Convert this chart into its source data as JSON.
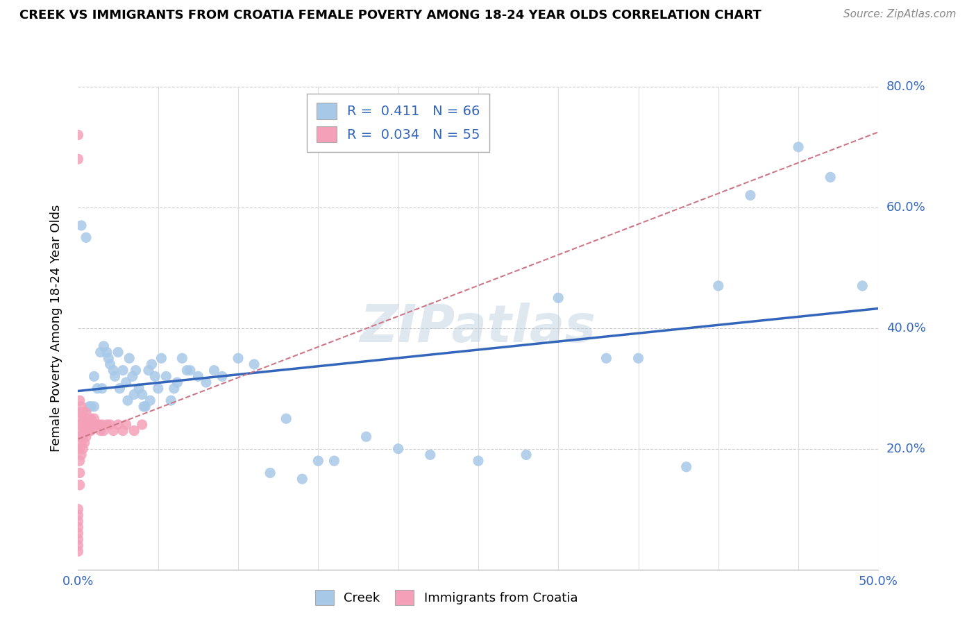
{
  "title": "CREEK VS IMMIGRANTS FROM CROATIA FEMALE POVERTY AMONG 18-24 YEAR OLDS CORRELATION CHART",
  "source": "Source: ZipAtlas.com",
  "ylabel": "Female Poverty Among 18-24 Year Olds",
  "xlim": [
    0.0,
    0.5
  ],
  "ylim": [
    0.0,
    0.8
  ],
  "creek_R": "0.411",
  "creek_N": "66",
  "croatia_R": "0.034",
  "croatia_N": "55",
  "creek_color": "#a8c8e8",
  "croatia_color": "#f4a0b8",
  "creek_line_color": "#3366bb",
  "croatia_line_color": "#cc7788",
  "legend_color": "#3366bb",
  "watermark": "ZIPatlas",
  "creek_scatter_x": [
    0.002,
    0.005,
    0.007,
    0.008,
    0.01,
    0.01,
    0.012,
    0.014,
    0.015,
    0.016,
    0.018,
    0.019,
    0.02,
    0.022,
    0.023,
    0.025,
    0.026,
    0.028,
    0.03,
    0.031,
    0.032,
    0.034,
    0.035,
    0.036,
    0.038,
    0.04,
    0.041,
    0.042,
    0.044,
    0.045,
    0.046,
    0.048,
    0.05,
    0.052,
    0.055,
    0.058,
    0.06,
    0.062,
    0.065,
    0.068,
    0.07,
    0.075,
    0.08,
    0.085,
    0.09,
    0.1,
    0.11,
    0.12,
    0.13,
    0.14,
    0.15,
    0.16,
    0.18,
    0.2,
    0.22,
    0.25,
    0.28,
    0.3,
    0.33,
    0.35,
    0.38,
    0.4,
    0.42,
    0.45,
    0.47,
    0.49
  ],
  "creek_scatter_y": [
    0.57,
    0.55,
    0.27,
    0.27,
    0.32,
    0.27,
    0.3,
    0.36,
    0.3,
    0.37,
    0.36,
    0.35,
    0.34,
    0.33,
    0.32,
    0.36,
    0.3,
    0.33,
    0.31,
    0.28,
    0.35,
    0.32,
    0.29,
    0.33,
    0.3,
    0.29,
    0.27,
    0.27,
    0.33,
    0.28,
    0.34,
    0.32,
    0.3,
    0.35,
    0.32,
    0.28,
    0.3,
    0.31,
    0.35,
    0.33,
    0.33,
    0.32,
    0.31,
    0.33,
    0.32,
    0.35,
    0.34,
    0.16,
    0.25,
    0.15,
    0.18,
    0.18,
    0.22,
    0.2,
    0.19,
    0.18,
    0.19,
    0.45,
    0.35,
    0.35,
    0.17,
    0.47,
    0.62,
    0.7,
    0.65,
    0.47
  ],
  "croatia_scatter_x": [
    0.0,
    0.0,
    0.0,
    0.0,
    0.0,
    0.0,
    0.0,
    0.0,
    0.0,
    0.0,
    0.001,
    0.001,
    0.001,
    0.001,
    0.001,
    0.001,
    0.001,
    0.001,
    0.002,
    0.002,
    0.002,
    0.002,
    0.002,
    0.003,
    0.003,
    0.003,
    0.003,
    0.004,
    0.004,
    0.004,
    0.005,
    0.005,
    0.005,
    0.006,
    0.006,
    0.007,
    0.007,
    0.008,
    0.008,
    0.009,
    0.01,
    0.011,
    0.012,
    0.013,
    0.014,
    0.015,
    0.016,
    0.018,
    0.02,
    0.022,
    0.025,
    0.028,
    0.03,
    0.035,
    0.04
  ],
  "croatia_scatter_y": [
    0.72,
    0.68,
    0.1,
    0.09,
    0.08,
    0.07,
    0.06,
    0.05,
    0.04,
    0.03,
    0.28,
    0.26,
    0.24,
    0.22,
    0.2,
    0.18,
    0.16,
    0.14,
    0.27,
    0.25,
    0.23,
    0.21,
    0.19,
    0.26,
    0.24,
    0.22,
    0.2,
    0.25,
    0.23,
    0.21,
    0.26,
    0.24,
    0.22,
    0.25,
    0.23,
    0.25,
    0.23,
    0.25,
    0.23,
    0.24,
    0.25,
    0.24,
    0.24,
    0.24,
    0.23,
    0.24,
    0.23,
    0.24,
    0.24,
    0.23,
    0.24,
    0.23,
    0.24,
    0.23,
    0.24
  ]
}
